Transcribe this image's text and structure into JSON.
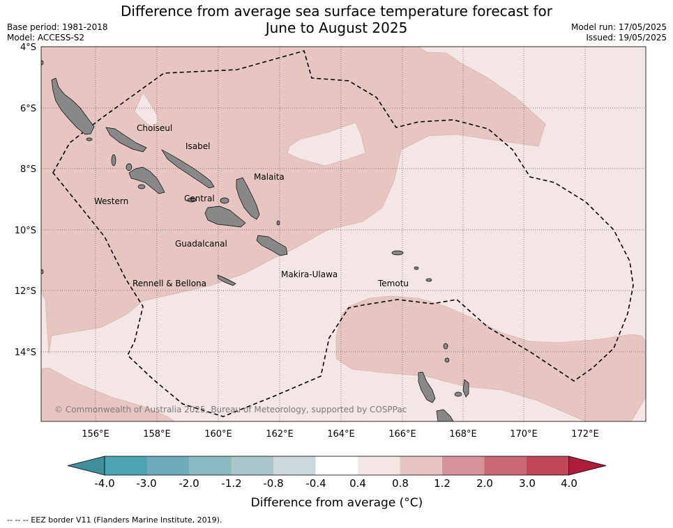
{
  "title": {
    "line1": "Difference from average sea surface temperature forecast for",
    "line2": "June to August 2025"
  },
  "meta": {
    "base_period": "Base period: 1981-2018",
    "model": "Model: ACCESS-S2",
    "model_run": "Model run: 17/05/2025",
    "issued": "Issued: 19/05/2025"
  },
  "map": {
    "lat_labels": [
      "4°S",
      "6°S",
      "8°S",
      "10°S",
      "12°S",
      "14°S"
    ],
    "lon_labels": [
      "156°E",
      "158°E",
      "160°E",
      "162°E",
      "164°E",
      "166°E",
      "168°E",
      "170°E",
      "172°E"
    ],
    "places": {
      "choiseul": "Choiseul",
      "isabel": "Isabel",
      "malaita": "Malaita",
      "western": "Western",
      "central": "Central",
      "guadalcanal": "Guadalcanal",
      "makira": "Makira-Ulawa",
      "rennell": "Rennell & Bellona",
      "temotu": "Temotu"
    },
    "copyright": "© Commonwealth of Australia 2025, Bureau of Meteorology, supported by COSPPac",
    "colors": {
      "anomaly_0_4_to_0_8": "#f4e6e4",
      "anomaly_0_8_to_1_2": "#e7c6c2",
      "land": "#888888",
      "eez_border": "#000000"
    }
  },
  "colorbar": {
    "ticks": [
      "-4.0",
      "-3.0",
      "-2.0",
      "-1.2",
      "-0.8",
      "-0.4",
      "0.4",
      "0.8",
      "1.2",
      "2.0",
      "3.0",
      "4.0"
    ],
    "colors": [
      "#3f8e99",
      "#4ba3b3",
      "#6cacbb",
      "#8bbac3",
      "#a9c7cb",
      "#c9d9dc",
      "#ffffff",
      "#f4e6e4",
      "#e7c6c2",
      "#d6949b",
      "#c96a76",
      "#c04657",
      "#ae1b3b"
    ],
    "title": "Difference from average (°C)"
  },
  "footnote": "--  --  -- EEZ border V11 (Flanders Marine Institute, 2019)."
}
